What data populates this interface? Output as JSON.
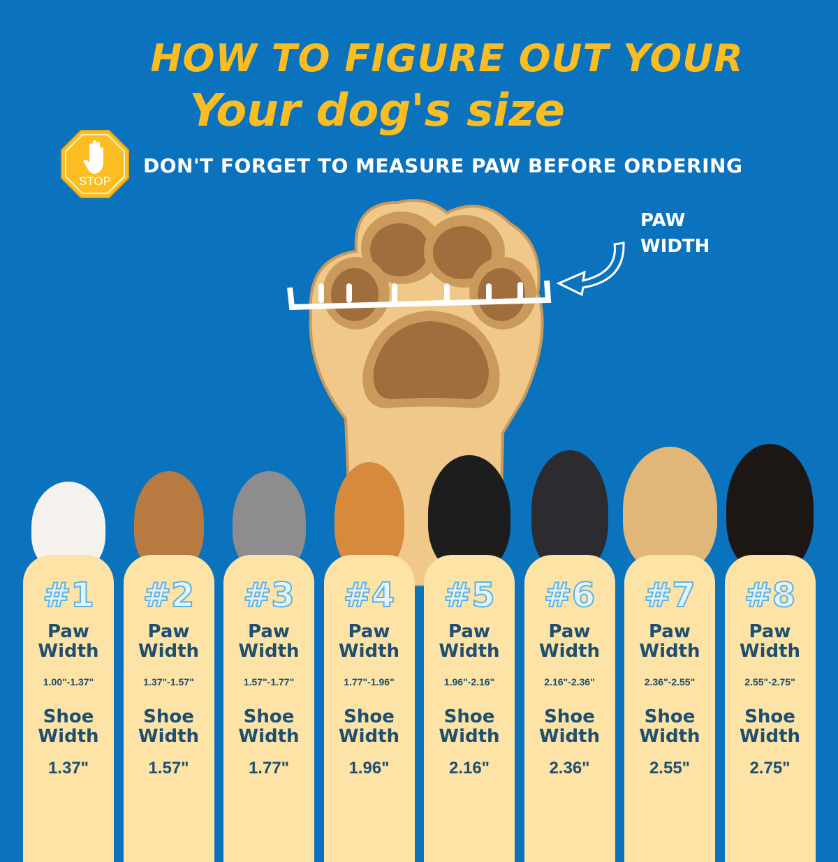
{
  "header": {
    "title_line1": "HOW TO FIGURE OUT YOUR",
    "title_line2": "Your dog's size",
    "stop_sign_text": "STOP",
    "subtitle": "DON'T FORGET TO MEASURE PAW BEFORE ORDERING"
  },
  "diagram": {
    "paw_label_line1": "PAW",
    "paw_label_line2": "WIDTH"
  },
  "colors": {
    "background": "#0b73bd",
    "title": "#fbbd22",
    "card": "#fde3a5",
    "card_text": "#1e4e70"
  },
  "sizes": [
    {
      "number": "#1",
      "paw_label": [
        "Paw",
        "Width"
      ],
      "paw_width": "1.00\"-1.37\"",
      "shoe_label": [
        "Shoe",
        "Width"
      ],
      "shoe_width": "1.37\""
    },
    {
      "number": "#2",
      "paw_label": [
        "Paw",
        "Width"
      ],
      "paw_width": "1.37\"-1.57\"",
      "shoe_label": [
        "Shoe",
        "Width"
      ],
      "shoe_width": "1.57\""
    },
    {
      "number": "#3",
      "paw_label": [
        "Paw",
        "Width"
      ],
      "paw_width": "1.57\"-1.77\"",
      "shoe_label": [
        "Shoe",
        "Width"
      ],
      "shoe_width": "1.77\""
    },
    {
      "number": "#4",
      "paw_label": [
        "Paw",
        "Width"
      ],
      "paw_width": "1.77\"-1.96\"",
      "shoe_label": [
        "Shoe",
        "Width"
      ],
      "shoe_width": "1.96\""
    },
    {
      "number": "#5",
      "paw_label": [
        "Paw",
        "Width"
      ],
      "paw_width": "1.96\"-2.16\"",
      "shoe_label": [
        "Shoe",
        "Width"
      ],
      "shoe_width": "2.16\""
    },
    {
      "number": "#6",
      "paw_label": [
        "Paw",
        "Width"
      ],
      "paw_width": "2.16\"-2.36\"",
      "shoe_label": [
        "Shoe",
        "Width"
      ],
      "shoe_width": "2.36\""
    },
    {
      "number": "#7",
      "paw_label": [
        "Paw",
        "Width"
      ],
      "paw_width": "2.36\"-2.55\"",
      "shoe_label": [
        "Shoe",
        "Width"
      ],
      "shoe_width": "2.55\""
    },
    {
      "number": "#8",
      "paw_label": [
        "Paw",
        "Width"
      ],
      "paw_width": "2.55\"-2.75\"",
      "shoe_label": [
        "Shoe",
        "Width"
      ],
      "shoe_width": "2.75\""
    }
  ]
}
